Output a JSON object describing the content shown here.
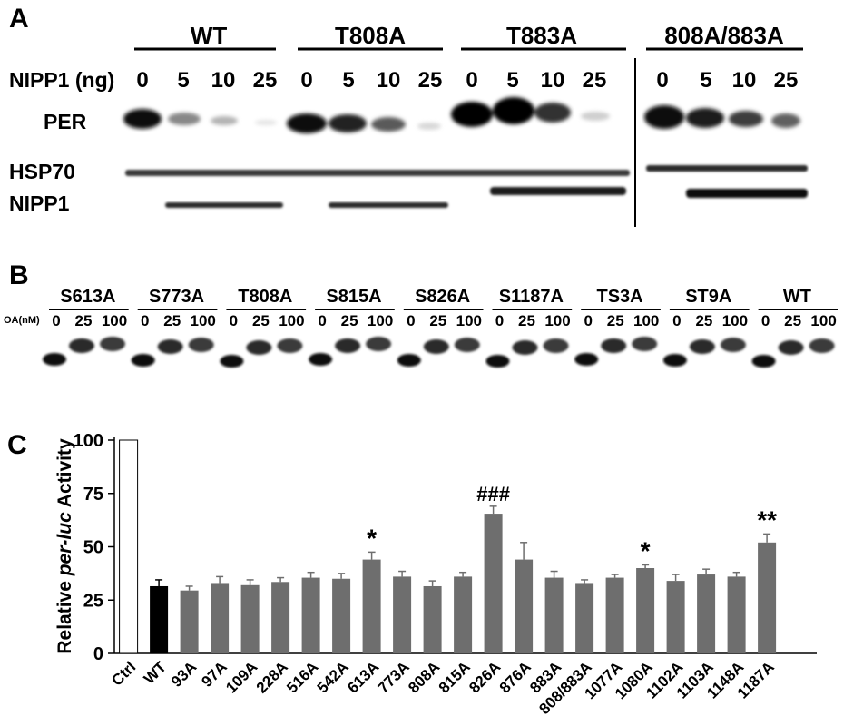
{
  "panel_a": {
    "letter": "A",
    "groups": [
      "WT",
      "T808A",
      "T883A",
      "808A/883A"
    ],
    "dose_label": "NIPP1 (ng)",
    "doses": [
      "0",
      "5",
      "10",
      "25"
    ],
    "row_labels": [
      "PER",
      "HSP70",
      "NIPP1"
    ]
  },
  "panel_b": {
    "letter": "B",
    "lanes": [
      "S613A",
      "S773A",
      "T808A",
      "S815A",
      "S826A",
      "S1187A",
      "TS3A",
      "ST9A",
      "WT"
    ],
    "oa_label": "OA(nM)",
    "doses": [
      "0",
      "25",
      "100"
    ]
  },
  "panel_c": {
    "letter": "C"
  },
  "chart_data": {
    "type": "bar",
    "ylabel_pre": "Relative ",
    "ylabel_italic": "per-luc",
    "ylabel_post": " Activity",
    "ylim": [
      0,
      100
    ],
    "yticks": [
      0,
      25,
      50,
      75,
      100
    ],
    "categories": [
      "Ctrl",
      "WT",
      "93A",
      "97A",
      "109A",
      "228A",
      "516A",
      "542A",
      "613A",
      "773A",
      "808A",
      "815A",
      "826A",
      "876A",
      "883A",
      "808/883A",
      "1077A",
      "1080A",
      "1102A",
      "1103A",
      "1148A",
      "1187A"
    ],
    "values": [
      100,
      31.5,
      29.5,
      33,
      32,
      33.5,
      35.5,
      35,
      44,
      36,
      31.5,
      36,
      65.5,
      44,
      35.5,
      33,
      35.5,
      40,
      34,
      37,
      36,
      52
    ],
    "errors": [
      0,
      3,
      2,
      3,
      2.5,
      2,
      2.5,
      2.5,
      3.5,
      2.5,
      2.5,
      2,
      3.5,
      8,
      3,
      1.5,
      1.5,
      1.5,
      3,
      2.5,
      2,
      4
    ],
    "bar_styles": [
      "open",
      "black",
      "gray",
      "gray",
      "gray",
      "gray",
      "gray",
      "gray",
      "gray",
      "gray",
      "gray",
      "gray",
      "gray",
      "gray",
      "gray",
      "gray",
      "gray",
      "gray",
      "gray",
      "gray",
      "gray",
      "gray"
    ],
    "annotations": [
      "",
      "",
      "",
      "",
      "",
      "",
      "",
      "",
      "*",
      "",
      "",
      "",
      "###",
      "",
      "",
      "",
      "",
      "*",
      "",
      "",
      "",
      "**"
    ],
    "colors": {
      "gray": "#6e6e6e",
      "black": "#000000",
      "open": "#ffffff"
    }
  }
}
